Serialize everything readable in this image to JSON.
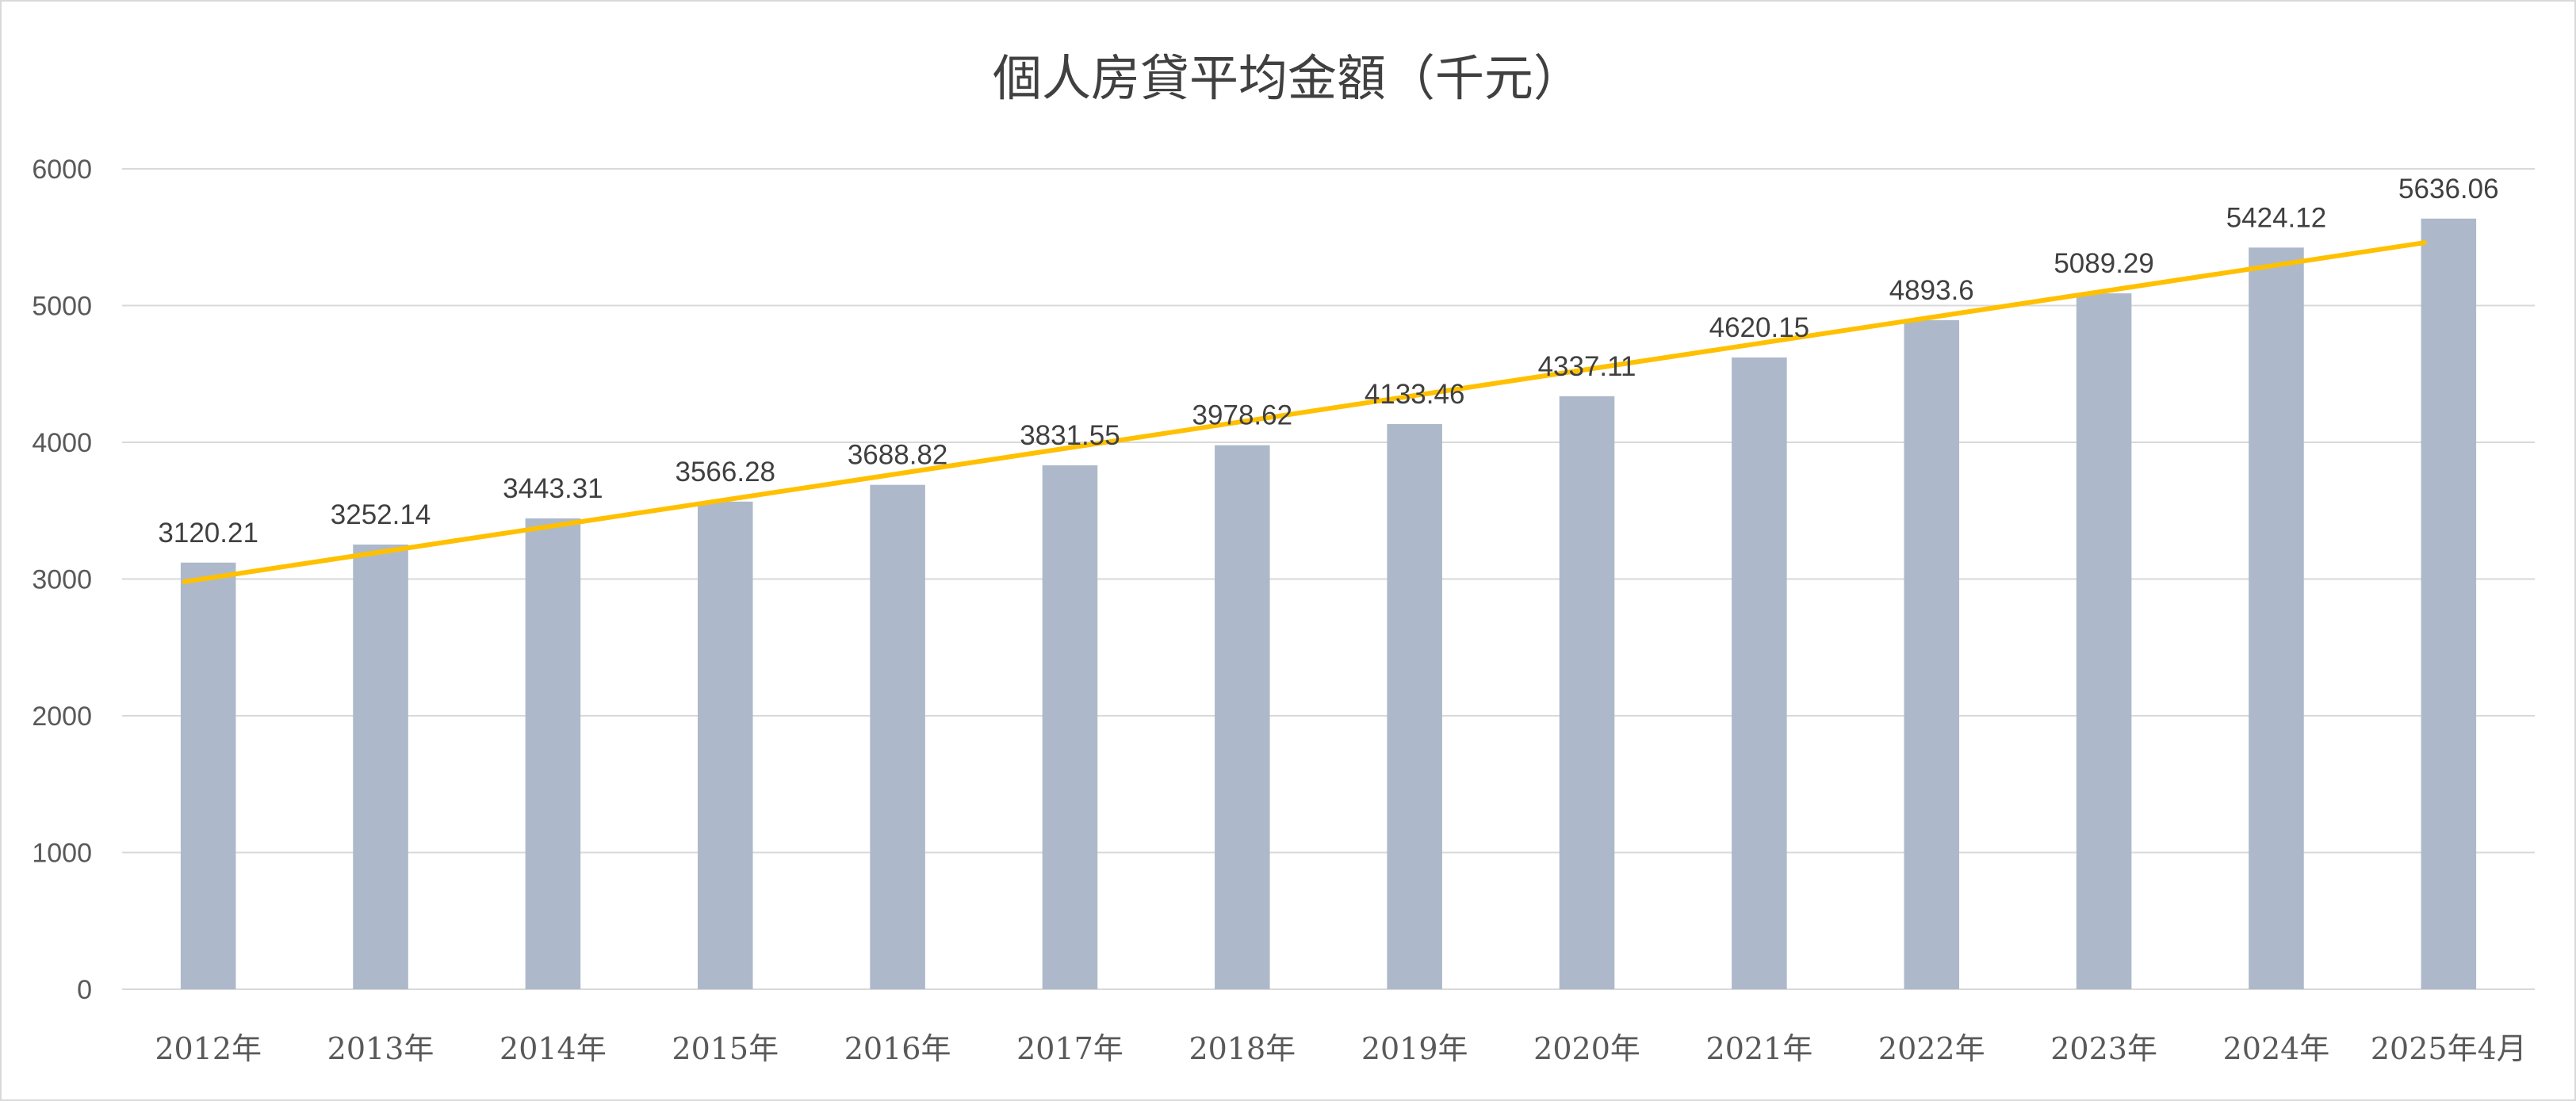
{
  "chart_data": {
    "type": "bar",
    "title": "個人房貸平均金額（千元）",
    "categories": [
      "2012年",
      "2013年",
      "2014年",
      "2015年",
      "2016年",
      "2017年",
      "2018年",
      "2019年",
      "2020年",
      "2021年",
      "2022年",
      "2023年",
      "2024年",
      "2025年4月"
    ],
    "values": [
      3120.21,
      3252.14,
      3443.31,
      3566.28,
      3688.82,
      3831.55,
      3978.62,
      4133.46,
      4337.11,
      4620.15,
      4893.6,
      5089.29,
      5424.12,
      5636.06
    ],
    "value_labels": [
      "3120.21",
      "3252.14",
      "3443.31",
      "3566.28",
      "3688.82",
      "3831.55",
      "3978.62",
      "4133.46",
      "4337.11",
      "4620.15",
      "4893.6",
      "5089.29",
      "5424.12",
      "5636.06"
    ],
    "ylim": [
      0,
      6000
    ],
    "yticks": [
      0,
      1000,
      2000,
      3000,
      4000,
      5000,
      6000
    ],
    "xlabel": "",
    "ylabel": "",
    "grid": true,
    "legend": "none",
    "trendline": {
      "type": "linear",
      "start": 2980,
      "end": 5460
    },
    "colors": {
      "bar": "#adb9ca",
      "trendline": "#ffc000",
      "grid": "#d9d9d9"
    }
  }
}
